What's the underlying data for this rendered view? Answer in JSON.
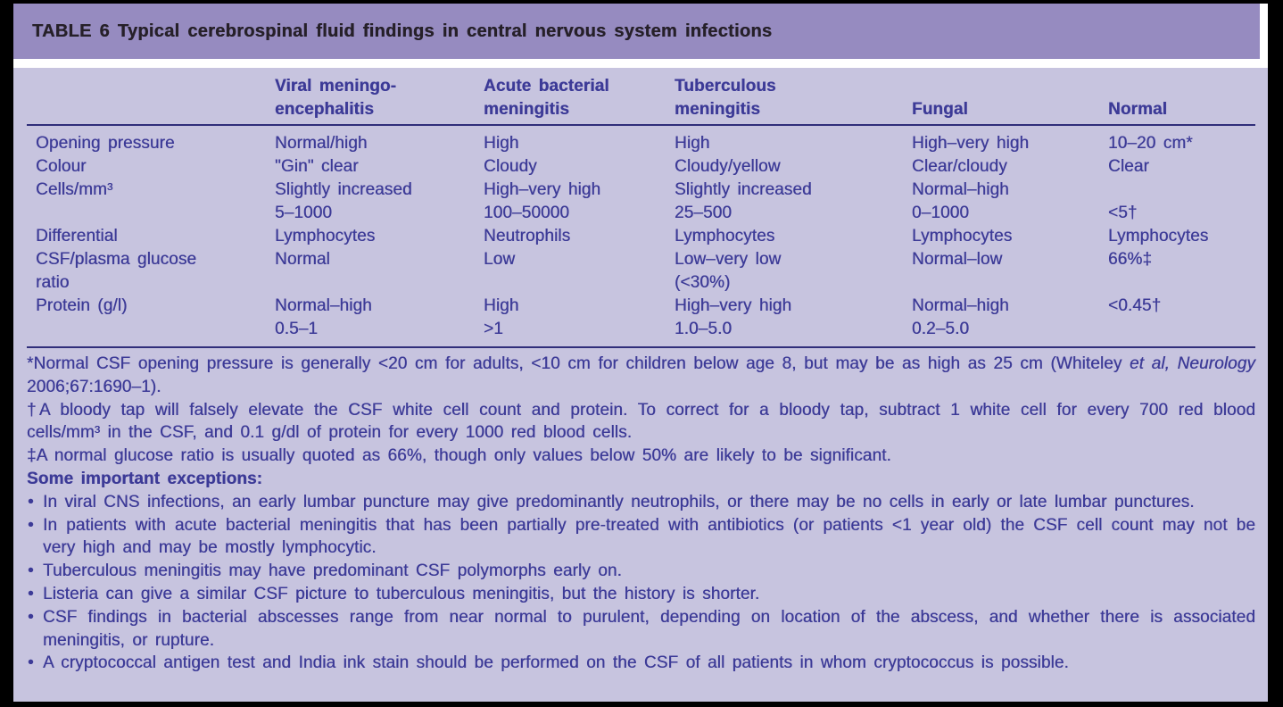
{
  "title": "TABLE 6 Typical cerebrospinal fluid findings in central nervous system infections",
  "colors": {
    "frame": "#000000",
    "title_bar_bg": "#968bc0",
    "body_bg": "#c7c4df",
    "text": "#3c3a97",
    "title_text": "#262029",
    "rule": "#302e7a",
    "separator": "#ffffff"
  },
  "table": {
    "column_headers": [
      {
        "l1": "Viral meningo-",
        "l2": "encephalitis"
      },
      {
        "l1": "Acute bacterial",
        "l2": "meningitis"
      },
      {
        "l1": "Tuberculous",
        "l2": "meningitis"
      },
      {
        "l1": "",
        "l2": "Fungal"
      },
      {
        "l1": "",
        "l2": "Normal"
      }
    ],
    "rows": [
      {
        "label_l1": "Opening pressure",
        "label_l2": "",
        "cells": [
          {
            "l1": "Normal/high",
            "l2": ""
          },
          {
            "l1": "High",
            "l2": ""
          },
          {
            "l1": "High",
            "l2": ""
          },
          {
            "l1": "High–very high",
            "l2": ""
          },
          {
            "l1": "10–20 cm*",
            "l2": ""
          }
        ]
      },
      {
        "label_l1": "Colour",
        "label_l2": "",
        "cells": [
          {
            "l1": "\"Gin\" clear",
            "l2": ""
          },
          {
            "l1": "Cloudy",
            "l2": ""
          },
          {
            "l1": "Cloudy/yellow",
            "l2": ""
          },
          {
            "l1": "Clear/cloudy",
            "l2": ""
          },
          {
            "l1": "Clear",
            "l2": ""
          }
        ]
      },
      {
        "label_l1": "Cells/mm³",
        "label_l2": "",
        "cells": [
          {
            "l1": "Slightly increased",
            "l2": "5–1000"
          },
          {
            "l1": "High–very high",
            "l2": "100–50000"
          },
          {
            "l1": "Slightly increased",
            "l2": "25–500"
          },
          {
            "l1": "Normal–high",
            "l2": "0–1000"
          },
          {
            "l1": "",
            "l2": "<5†"
          }
        ]
      },
      {
        "label_l1": "Differential",
        "label_l2": "",
        "cells": [
          {
            "l1": "Lymphocytes",
            "l2": ""
          },
          {
            "l1": "Neutrophils",
            "l2": ""
          },
          {
            "l1": "Lymphocytes",
            "l2": ""
          },
          {
            "l1": "Lymphocytes",
            "l2": ""
          },
          {
            "l1": "Lymphocytes",
            "l2": ""
          }
        ]
      },
      {
        "label_l1": "CSF/plasma glucose",
        "label_l2": "ratio",
        "cells": [
          {
            "l1": "Normal",
            "l2": ""
          },
          {
            "l1": "Low",
            "l2": ""
          },
          {
            "l1": "Low–very low",
            "l2": "(<30%)"
          },
          {
            "l1": "Normal–low",
            "l2": ""
          },
          {
            "l1": "66%‡",
            "l2": ""
          }
        ]
      },
      {
        "label_l1": "Protein (g/l)",
        "label_l2": "",
        "cells": [
          {
            "l1": "Normal–high",
            "l2": "0.5–1"
          },
          {
            "l1": "High",
            "l2": ">1"
          },
          {
            "l1": "High–very high",
            "l2": "1.0–5.0"
          },
          {
            "l1": "Normal–high",
            "l2": "0.2–5.0"
          },
          {
            "l1": "<0.45†",
            "l2": ""
          }
        ]
      }
    ]
  },
  "footnotes": {
    "asterisk": {
      "pre": "*Normal CSF opening pressure is generally <20 cm for adults, <10 cm for children below age 8, but may be as high as 25 cm (Whiteley ",
      "italic": "et al, Neurology",
      "post": " 2006;67:1690–1)."
    },
    "dagger": "†A bloody tap will falsely elevate the CSF white cell count and protein. To correct for a bloody tap, subtract 1 white cell for every 700 red blood cells/mm³ in the CSF, and 0.1 g/dl of protein for every 1000 red blood cells.",
    "double_dagger": "‡A normal glucose ratio is usually quoted as 66%, though only values below 50% are likely to be significant.",
    "exceptions_heading": "Some important exceptions:",
    "bullets": [
      "In viral CNS infections, an early lumbar puncture may give predominantly neutrophils, or there may be no cells in early or late lumbar punctures.",
      "In patients with acute bacterial meningitis that has been partially pre-treated with antibiotics (or patients <1 year old) the CSF cell count may not be very high and may be mostly lymphocytic.",
      "Tuberculous meningitis may have predominant CSF polymorphs early on.",
      "Listeria can give a similar CSF picture to tuberculous meningitis, but the history is shorter.",
      "CSF findings in bacterial abscesses range from near normal to purulent, depending on location of the abscess, and whether there is associated meningitis, or rupture.",
      "A cryptococcal antigen test and India ink stain should be performed on the CSF of all patients in whom cryptococcus is possible."
    ]
  }
}
